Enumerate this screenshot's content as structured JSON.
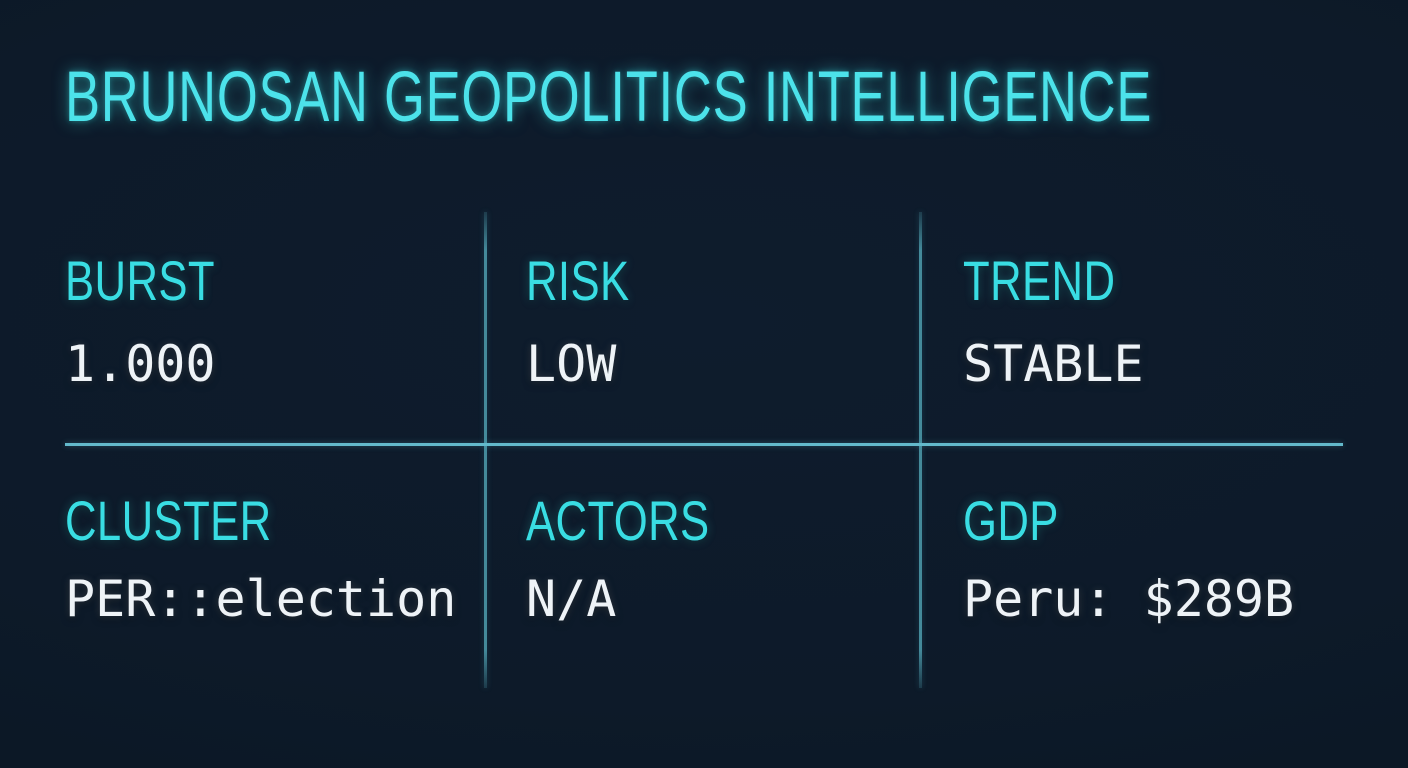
{
  "title": "BRUNOSAN GEOPOLITICS INTELLIGENCE",
  "theme": {
    "background": "#0d1a29",
    "title_cyan": "#4ce2ea",
    "label_cyan": "#39dde3",
    "value_white": "#eef3f7",
    "vertical_divider": "#4d9dae",
    "horizontal_divider": "#63b9cb"
  },
  "metrics": [
    {
      "label": "BURST",
      "value": "1.000"
    },
    {
      "label": "RISK",
      "value": "LOW"
    },
    {
      "label": "TREND",
      "value": "STABLE"
    },
    {
      "label": "CLUSTER",
      "value": "PER::election"
    },
    {
      "label": "ACTORS",
      "value": "N/A"
    },
    {
      "label": "GDP",
      "value": "Peru: $289B"
    }
  ]
}
